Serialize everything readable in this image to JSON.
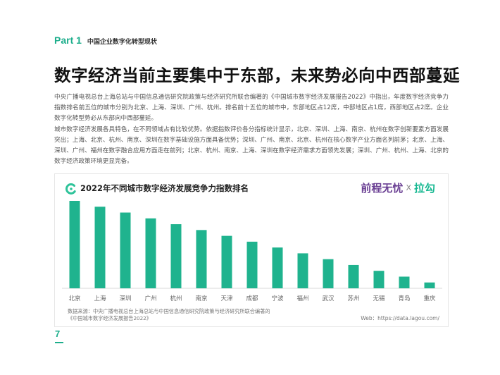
{
  "header": {
    "part_label": "Part 1",
    "part_title": "中国企业数字化转型现状"
  },
  "title": "数字经济当前主要集中于东部，未来势必向中西部蔓延",
  "body": {
    "paragraph1": "中央广播电视总台上海总站与中国信息通信研究院政策与经济研究所联合编著的《中国城市数字经济发展报告2022》中指出，年度数字经济竞争力指数排名前五位的城市分别为北京、上海、深圳、广州、杭州。排名前十五位的城市中，东部地区占12席，中部地区占1席，西部地区占2席。企业数字化转型势必从东部向中西部蔓延。",
    "paragraph2": "城市数字经济发展各具特色，在不同领域占有比较优势。依据指数评价各分指标统计显示，北京、深圳、上海、南京、杭州在数字创新要素方面发展突出；上海、北京、杭州、南京、深圳在数字基础设施方面具备优势；深圳、广州、南京、北京、杭州在核心数字产业方面名列前茅；北京、上海、深圳、广州、福州在数字融合应用方面走在前列；北京、杭州、南京、上海、深圳在数字经济需求方面领先发展；深圳、广州、杭州、上海、北京的数字经济政策环境更显完备。"
  },
  "chart": {
    "brand_51job": "前程无忧",
    "brand_x": "X",
    "brand_lagou": "拉勾",
    "source_line1": "数据来源：中央广播电视总台上海总站与中国信息通信研究院政策与经济研究所联合编著的",
    "source_line2": "《中国城市数字经济发展报告2022》",
    "web": "Web：https://data.lagou.com/",
    "bar_color": "#1fb38e",
    "icon_color": "#2ec39a"
  },
  "chart_data": {
    "type": "bar",
    "title": "2022年不同城市数字经济发展竞争力指数排名",
    "categories": [
      "北京",
      "上海",
      "深圳",
      "广州",
      "杭州",
      "南京",
      "天津",
      "成都",
      "宁波",
      "福州",
      "武汉",
      "苏州",
      "无锡",
      "青岛",
      "重庆"
    ],
    "values": [
      15,
      14,
      13,
      12,
      11,
      10,
      9,
      8,
      7,
      6,
      5,
      4,
      3,
      2,
      1
    ],
    "xlabel": "",
    "ylabel": "",
    "grid": false,
    "yaxis_visible": false
  },
  "page_number": "7"
}
